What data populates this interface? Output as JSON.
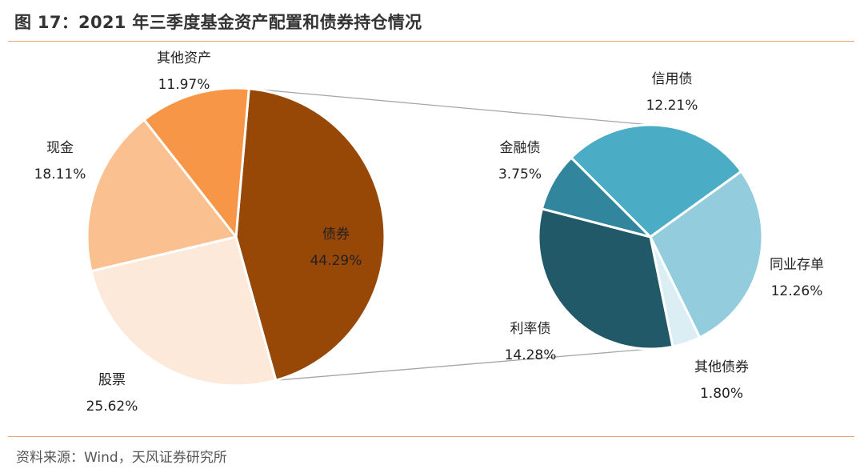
{
  "title": "图 17：2021 年三季度基金资产配置和债券持仓情况",
  "source": "资料来源：Wind，天风证券研究所",
  "chart_data": [
    {
      "type": "pie",
      "slices": [
        {
          "label": "债券",
          "value_label": "44.29%",
          "value": 44.29,
          "color": "#974706"
        },
        {
          "label": "股票",
          "value_label": "25.62%",
          "value": 25.62,
          "color": "#fce9da"
        },
        {
          "label": "现金",
          "value_label": "18.11%",
          "value": 18.11,
          "color": "#fac090"
        },
        {
          "label": "其他资产",
          "value_label": "11.97%",
          "value": 11.97,
          "color": "#f79646"
        }
      ]
    },
    {
      "type": "pie",
      "slices": [
        {
          "label": "信用债",
          "value_label": "12.21%",
          "value": 12.21,
          "color": "#4bacc6"
        },
        {
          "label": "同业存单",
          "value_label": "12.26%",
          "value": 12.26,
          "color": "#93cddd"
        },
        {
          "label": "其他债券",
          "value_label": "1.80%",
          "value": 1.8,
          "color": "#dbeef4"
        },
        {
          "label": "利率债",
          "value_label": "14.28%",
          "value": 14.28,
          "color": "#215968"
        },
        {
          "label": "金融债",
          "value_label": "3.75%",
          "value": 3.75,
          "color": "#31859c"
        }
      ]
    }
  ]
}
